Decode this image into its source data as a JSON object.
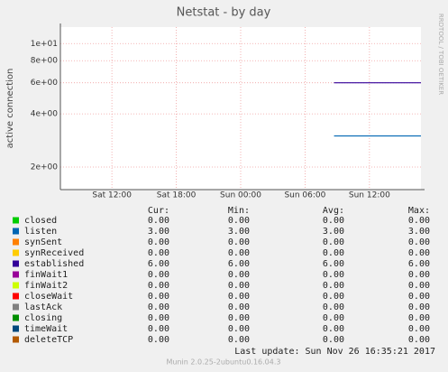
{
  "chart_data": {
    "type": "line",
    "title": "Netstat - by day",
    "y_label": "active connection",
    "side_label": "RRDTOOL / TOBI OETIKER",
    "log_y": true,
    "grid": true,
    "ylim": [
      1.49,
      12.4
    ],
    "yticks": [
      {
        "value": 2,
        "label": "2e+00"
      },
      {
        "value": 4,
        "label": "4e+00"
      },
      {
        "value": 6,
        "label": "6e+00"
      },
      {
        "value": 8,
        "label": "8e+00"
      },
      {
        "value": 10,
        "label": "1e+01"
      }
    ],
    "xlim": [
      7.2,
      40.8
    ],
    "xticks": [
      {
        "value": 12,
        "label": "Sat 12:00"
      },
      {
        "value": 18,
        "label": "Sat 18:00"
      },
      {
        "value": 24,
        "label": "Sun 00:00"
      },
      {
        "value": 30,
        "label": "Sun 06:00"
      },
      {
        "value": 36,
        "label": "Sun 12:00"
      }
    ],
    "stat_headers": [
      "Cur:",
      "Min:",
      "Avg:",
      "Max:"
    ],
    "series": [
      {
        "name": "closed",
        "color": "#00cc00",
        "stats": [
          "0.00",
          "0.00",
          "0.00",
          "0.00"
        ]
      },
      {
        "name": "listen",
        "color": "#0066b3",
        "stats": [
          "3.00",
          "3.00",
          "3.00",
          "3.00"
        ],
        "x": [
          32.7,
          40.8
        ],
        "values": [
          3,
          3
        ]
      },
      {
        "name": "synSent",
        "color": "#ff8000",
        "stats": [
          "0.00",
          "0.00",
          "0.00",
          "0.00"
        ]
      },
      {
        "name": "synReceived",
        "color": "#ffcc00",
        "stats": [
          "0.00",
          "0.00",
          "0.00",
          "0.00"
        ]
      },
      {
        "name": "established",
        "color": "#330099",
        "stats": [
          "6.00",
          "6.00",
          "6.00",
          "6.00"
        ],
        "x": [
          32.7,
          40.8
        ],
        "values": [
          6,
          6
        ]
      },
      {
        "name": "finWait1",
        "color": "#990099",
        "stats": [
          "0.00",
          "0.00",
          "0.00",
          "0.00"
        ]
      },
      {
        "name": "finWait2",
        "color": "#ccff00",
        "stats": [
          "0.00",
          "0.00",
          "0.00",
          "0.00"
        ]
      },
      {
        "name": "closeWait",
        "color": "#ff0000",
        "stats": [
          "0.00",
          "0.00",
          "0.00",
          "0.00"
        ]
      },
      {
        "name": "lastAck",
        "color": "#808080",
        "stats": [
          "0.00",
          "0.00",
          "0.00",
          "0.00"
        ]
      },
      {
        "name": "closing",
        "color": "#008f00",
        "stats": [
          "0.00",
          "0.00",
          "0.00",
          "0.00"
        ]
      },
      {
        "name": "timeWait",
        "color": "#00487d",
        "stats": [
          "0.00",
          "0.00",
          "0.00",
          "0.00"
        ]
      },
      {
        "name": "deleteTCP",
        "color": "#b35a00",
        "stats": [
          "0.00",
          "0.00",
          "0.00",
          "0.00"
        ]
      }
    ],
    "last_update": "Last update:  Sun Nov 26 16:35:21 2017",
    "footer": "Munin 2.0.25-2ubuntu0.16.04.3"
  }
}
